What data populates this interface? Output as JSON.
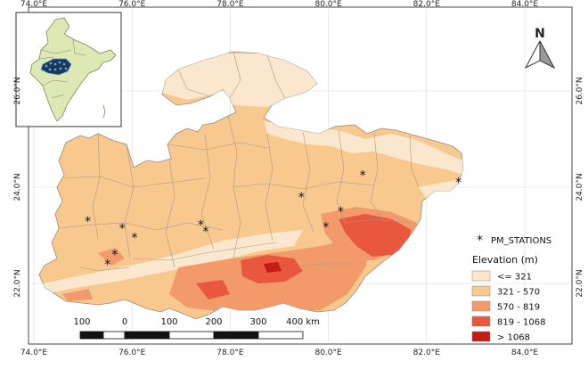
{
  "axes": {
    "top_labels": [
      "74.0°E",
      "76.0°E",
      "78.0°E",
      "80.0°E",
      "82.0°E",
      "84.0°E"
    ],
    "bottom_labels": [
      "74.0°E",
      "76.0°E",
      "78.0°E",
      "80.0°E",
      "82.0°E",
      "84.0°E"
    ],
    "left_labels": [
      "26.0°N",
      "24.0°N",
      "22.0°N"
    ],
    "right_labels": [
      "26.0°N",
      "24.0°N",
      "22.0°N"
    ]
  },
  "north_arrow": {
    "label": "N"
  },
  "legend": {
    "stations_label": "PM_STATIONS",
    "elevation_title": "Elevation (m)",
    "classes": [
      {
        "label": "<= 321",
        "color": "#fbe7cd"
      },
      {
        "label": "321 - 570",
        "color": "#f8c88f"
      },
      {
        "label": "570 - 819",
        "color": "#f29a6a"
      },
      {
        "label": "819 - 1068",
        "color": "#e8573e"
      },
      {
        "label": "> 1068",
        "color": "#c41c16"
      }
    ]
  },
  "scale_bar": {
    "labels": [
      "100",
      "0",
      "100",
      "200",
      "300",
      "400 km"
    ]
  },
  "stations": [
    {
      "lon": 75.1,
      "lat": 23.3
    },
    {
      "lon": 75.8,
      "lat": 23.15
    },
    {
      "lon": 76.05,
      "lat": 22.95
    },
    {
      "lon": 75.65,
      "lat": 22.6
    },
    {
      "lon": 75.5,
      "lat": 22.4
    },
    {
      "lon": 77.4,
      "lat": 23.22
    },
    {
      "lon": 77.5,
      "lat": 23.08
    },
    {
      "lon": 79.45,
      "lat": 23.8
    },
    {
      "lon": 79.95,
      "lat": 23.18
    },
    {
      "lon": 80.25,
      "lat": 23.5
    },
    {
      "lon": 80.7,
      "lat": 24.25
    },
    {
      "lon": 82.65,
      "lat": 24.1
    }
  ]
}
